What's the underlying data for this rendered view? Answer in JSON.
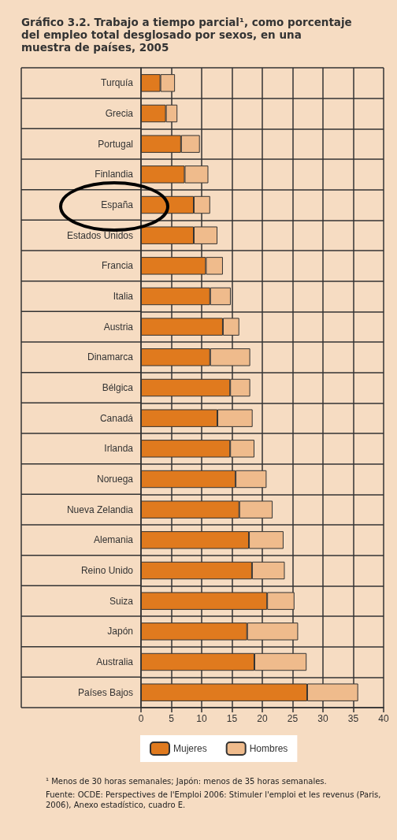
{
  "chart_data": {
    "type": "bar",
    "orientation": "horizontal",
    "stacked": true,
    "title": "Gráfico 3.2. Trabajo a tiempo parcial¹, como porcentaje del empleo total desglosado por sexos, en una muestra de países, 2005",
    "categories": [
      "Turquía",
      "Grecia",
      "Portugal",
      "Finlandia",
      "España",
      "Estados Unidos",
      "Francia",
      "Italia",
      "Austria",
      "Dinamarca",
      "Bélgica",
      "Canadá",
      "Irlanda",
      "Noruega",
      "Nueva Zelandia",
      "Alemania",
      "Reino Unido",
      "Suiza",
      "Japón",
      "Australia",
      "Países Bajos"
    ],
    "series": [
      {
        "name": "Mujeres",
        "color": "#e07a1e",
        "values": [
          3.2,
          4.1,
          6.6,
          7.2,
          8.7,
          8.7,
          10.7,
          11.4,
          13.5,
          11.4,
          14.7,
          12.6,
          14.7,
          15.6,
          16.2,
          17.8,
          18.3,
          20.8,
          17.5,
          18.7,
          27.4
        ]
      },
      {
        "name": "Hombres",
        "color": "#efbb8c",
        "values": [
          2.4,
          1.9,
          3.1,
          3.9,
          2.7,
          3.9,
          2.8,
          3.4,
          2.7,
          6.6,
          3.3,
          5.8,
          4.0,
          5.1,
          5.5,
          5.7,
          5.4,
          4.5,
          8.4,
          8.6,
          8.4
        ]
      }
    ],
    "xlim": [
      0,
      40
    ],
    "xticks": [
      0,
      5,
      10,
      15,
      20,
      25,
      30,
      35,
      40
    ],
    "grid": true,
    "legend": "bottom",
    "annotations": [
      "¹ Menos de 30 horas semanales; Japón: menos de 35 horas semanales.",
      "Fuente: OCDE: Perspectives de l'Emploi 2006: Stimuler l'emploi et les revenus (Paris, 2006), Anexo estadístico, cuadro E."
    ]
  }
}
